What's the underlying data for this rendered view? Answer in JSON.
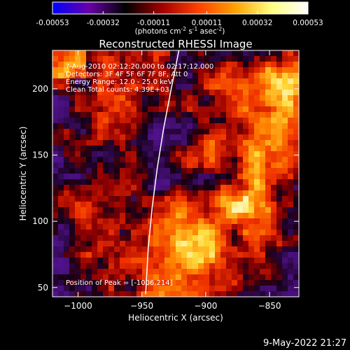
{
  "colorbar": {
    "tick_labels": [
      "-0.00053",
      "-0.00032",
      "-0.00011",
      "0.00011",
      "0.00032",
      "0.00053"
    ],
    "tick_values": [
      -0.00053,
      -0.00032,
      -0.00011,
      0.00011,
      0.00032,
      0.00053
    ],
    "range": [
      -0.00053,
      0.00053
    ],
    "unit_label_parts": [
      "(photons cm",
      "-2",
      " s",
      "-1",
      " asec",
      "-2",
      ")"
    ],
    "colors": [
      "#0000ff",
      "#6a00a8",
      "#000000",
      "#a00000",
      "#ff4000",
      "#ffa000",
      "#ffff80",
      "#ffffff"
    ]
  },
  "chart_data": {
    "type": "heatmap",
    "title": "Reconstructed RHESSI Image",
    "xlabel": "Heliocentric X (arcsec)",
    "ylabel": "Heliocentric Y (arcsec)",
    "xlim": [
      -1020,
      -827
    ],
    "ylim": [
      43,
      229
    ],
    "x_ticks": [
      -1000,
      -950,
      -900,
      -850
    ],
    "x_tick_labels": [
      "−1000",
      "−950",
      "−900",
      "−850"
    ],
    "y_ticks": [
      50,
      100,
      150,
      200
    ],
    "y_tick_labels": [
      "50",
      "100",
      "150",
      "200"
    ],
    "annotations": [
      "?-Aug-2010 02:12:20.000 to 02:17:12.000",
      "Detectors: 3F 4F 5F 6F 7F 8F, Att 0",
      "Energy Range: 12.0 - 25.0 keV",
      "Clean    Total counts: 4.39E+03"
    ],
    "peak_label": "Position of Peak = [-1006,214]",
    "peak": [
      -1006,
      214
    ],
    "limb_curve": [
      [
        -947,
        45
      ],
      [
        -945,
        80
      ],
      [
        -942,
        110
      ],
      [
        -938,
        140
      ],
      [
        -933,
        170
      ],
      [
        -927,
        200
      ],
      [
        -921,
        229
      ]
    ],
    "grid": false
  },
  "timestamp": "9-May-2022 21:27"
}
